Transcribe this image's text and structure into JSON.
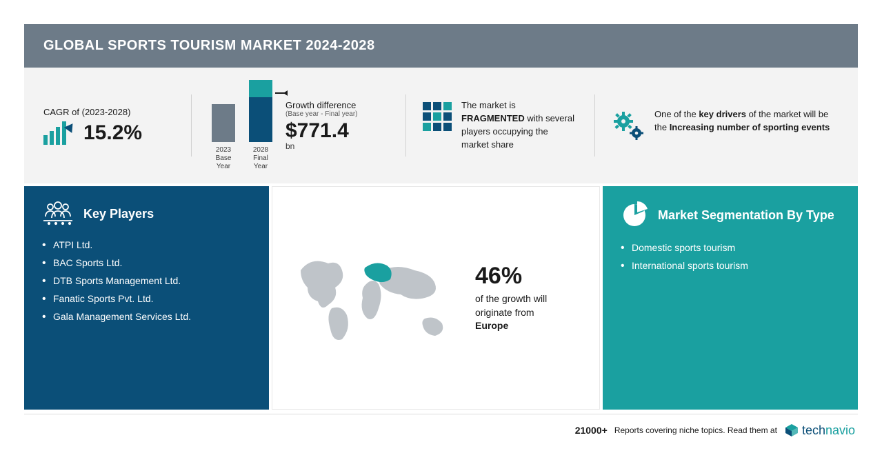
{
  "header": {
    "title": "GLOBAL SPORTS TOURISM MARKET 2024-2028"
  },
  "cagr": {
    "label": "CAGR of (2023-2028)",
    "value": "15.2%",
    "bar_color": "#1aa0a0",
    "arrow_color": "#0b4f78"
  },
  "growth_bars": {
    "base": {
      "year": "2023",
      "label": "Base Year",
      "height": 55,
      "color": "#6d7b88"
    },
    "final": {
      "year": "2028",
      "label": "Final Year",
      "height": 90,
      "color_top": "#1aa0a0",
      "color_bottom": "#0b4f78"
    }
  },
  "growth_diff": {
    "label": "Growth difference",
    "sub": "(Base year - Final year)",
    "value": "$771.4",
    "unit": "bn"
  },
  "fragmented": {
    "prefix": "The market is",
    "emphasis": "FRAGMENTED",
    "suffix": "with several players occupying the market share",
    "icon_colors": [
      "#0b4f78",
      "#1aa0a0"
    ]
  },
  "drivers": {
    "prefix": "One of the ",
    "bold1": "key drivers",
    "mid": " of the market will be the ",
    "bold2": "Increasing number of sporting events",
    "gear_colors": [
      "#1aa0a0",
      "#0b4f78"
    ]
  },
  "key_players": {
    "title": "Key Players",
    "items": [
      "ATPI Ltd.",
      "BAC Sports Ltd.",
      "DTB Sports Management Ltd.",
      "Fanatic Sports Pvt. Ltd.",
      "Gala Management Services Ltd."
    ],
    "bg_color": "#0b4f78"
  },
  "geography": {
    "pct": "46%",
    "desc_prefix": "of the growth will originate from",
    "region": "Europe",
    "highlight_color": "#1aa0a0",
    "map_color": "#bfc4c9"
  },
  "segmentation": {
    "title": "Market Segmentation By Type",
    "items": [
      "Domestic sports tourism",
      "International sports tourism"
    ],
    "bg_color": "#1aa0a0"
  },
  "footer": {
    "count": "21000+",
    "text": "Reports covering niche topics. Read them at",
    "brand_part1": "tech",
    "brand_part2": "navio",
    "brand_color1": "#0b4f78",
    "brand_color2": "#1aa0a0"
  }
}
